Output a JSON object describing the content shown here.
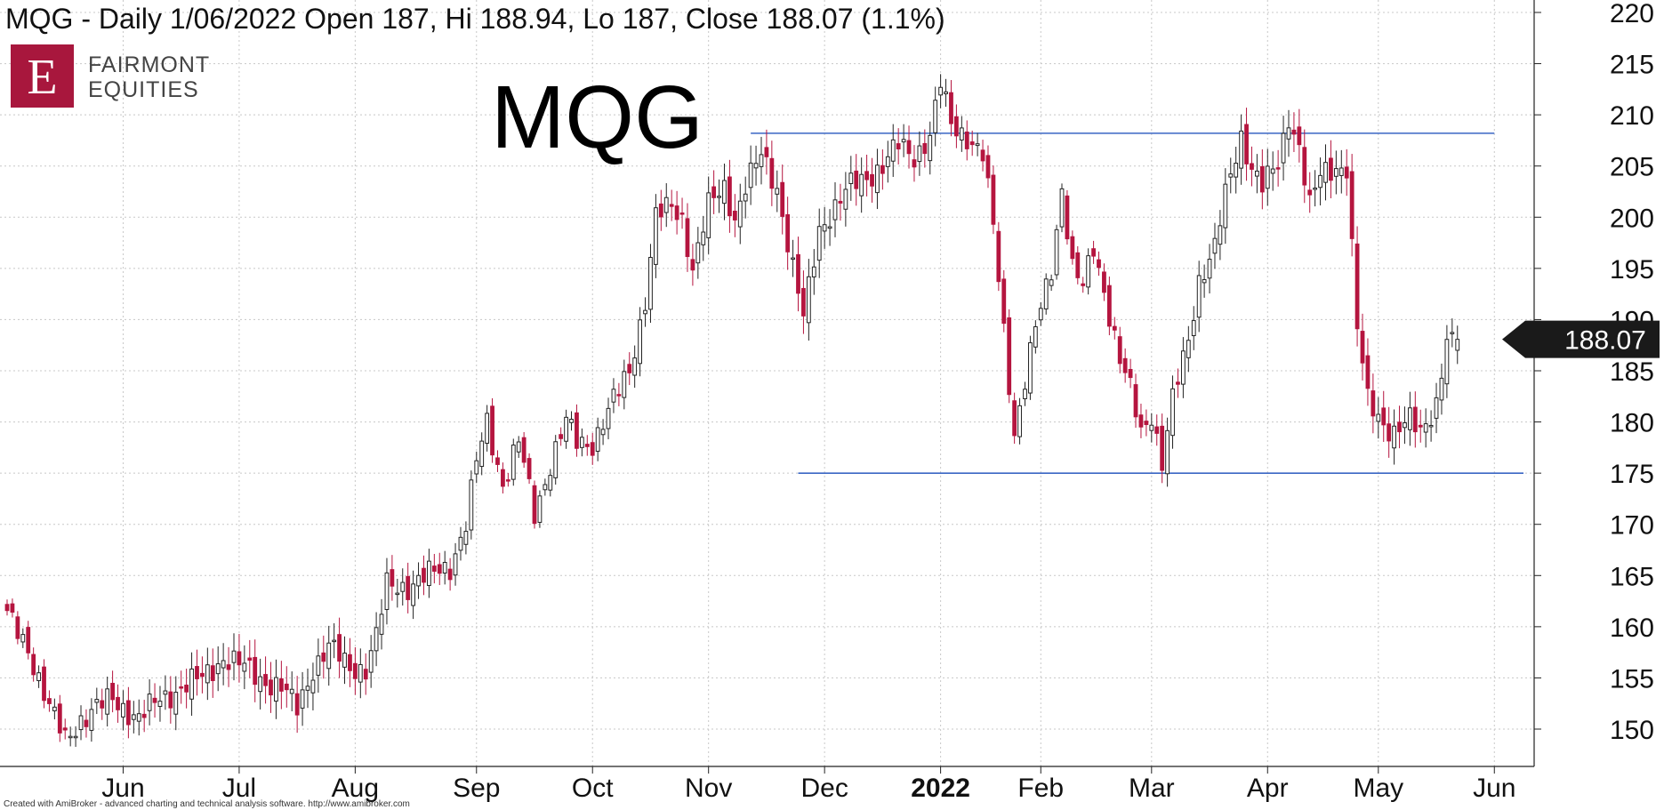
{
  "header": {
    "title": "MQG - Daily 1/06/2022 Open 187, Hi 188.94, Lo 187, Close 188.07 (1.1%)"
  },
  "logo": {
    "letter": "E",
    "line1": "FAIRMONT",
    "line2": "EQUITIES",
    "color": "#a8173d"
  },
  "ticker_label": "MQG",
  "footer_text": "Created with AmiBroker - advanced charting and technical analysis software. http://www.amibroker.com",
  "colors": {
    "up_fill": "#ffffff",
    "down_fill": "#b5153f",
    "candle_outline": "#222222",
    "level_line": "#3a66c4",
    "grid": "#c8c8c8",
    "price_tag_bg": "#1a1a1a"
  },
  "chart_data": {
    "type": "candlestick",
    "ylim": [
      146,
      222
    ],
    "y_ticks": [
      150,
      155,
      160,
      165,
      170,
      175,
      180,
      185,
      190,
      195,
      200,
      205,
      210,
      215,
      220
    ],
    "x_ticks": [
      {
        "label": "Jun",
        "bar": 22,
        "bold": false
      },
      {
        "label": "Jul",
        "bar": 44,
        "bold": false
      },
      {
        "label": "Aug",
        "bar": 66,
        "bold": false
      },
      {
        "label": "Sep",
        "bar": 89,
        "bold": false
      },
      {
        "label": "Oct",
        "bar": 111,
        "bold": false
      },
      {
        "label": "Nov",
        "bar": 133,
        "bold": false
      },
      {
        "label": "Dec",
        "bar": 155,
        "bold": false
      },
      {
        "label": "2022",
        "bar": 177,
        "bold": true
      },
      {
        "label": "Feb",
        "bar": 196,
        "bold": false
      },
      {
        "label": "Mar",
        "bar": 217,
        "bold": false
      },
      {
        "label": "Apr",
        "bar": 239,
        "bold": false
      },
      {
        "label": "May",
        "bar": 260,
        "bold": false
      },
      {
        "label": "Jun",
        "bar": 282,
        "bold": false
      }
    ],
    "levels": [
      {
        "value": 208.2,
        "from_bar": 141,
        "to_bar": 282
      },
      {
        "value": 175.0,
        "from_bar": 150,
        "to_bar": 292
      }
    ],
    "last_price": "188.07",
    "last_price_value": 188.07,
    "anchors": [
      [
        0,
        161
      ],
      [
        4,
        158
      ],
      [
        8,
        152
      ],
      [
        11,
        149
      ],
      [
        14,
        151
      ],
      [
        17,
        152
      ],
      [
        20,
        153
      ],
      [
        25,
        151
      ],
      [
        29,
        153
      ],
      [
        33,
        154
      ],
      [
        37,
        155
      ],
      [
        41,
        157
      ],
      [
        45,
        156
      ],
      [
        48,
        155
      ],
      [
        52,
        154
      ],
      [
        55,
        152
      ],
      [
        58,
        156
      ],
      [
        61,
        158
      ],
      [
        65,
        156
      ],
      [
        68,
        156
      ],
      [
        70,
        159
      ],
      [
        72,
        164
      ],
      [
        76,
        164
      ],
      [
        80,
        165
      ],
      [
        84,
        166
      ],
      [
        87,
        170
      ],
      [
        89,
        176
      ],
      [
        91,
        180
      ],
      [
        94,
        174
      ],
      [
        97,
        178
      ],
      [
        100,
        171
      ],
      [
        103,
        176
      ],
      [
        106,
        180
      ],
      [
        108,
        178
      ],
      [
        111,
        178
      ],
      [
        115,
        182
      ],
      [
        118,
        185
      ],
      [
        121,
        192
      ],
      [
        123,
        200
      ],
      [
        126,
        201
      ],
      [
        128,
        200
      ],
      [
        130,
        195
      ],
      [
        133,
        201
      ],
      [
        136,
        203
      ],
      [
        138,
        200
      ],
      [
        140,
        203
      ],
      [
        143,
        206
      ],
      [
        146,
        203
      ],
      [
        149,
        195
      ],
      [
        151,
        190
      ],
      [
        154,
        199
      ],
      [
        157,
        201
      ],
      [
        160,
        203
      ],
      [
        163,
        204
      ],
      [
        166,
        205
      ],
      [
        169,
        207
      ],
      [
        172,
        206
      ],
      [
        175,
        208
      ],
      [
        177,
        213
      ],
      [
        179,
        209
      ],
      [
        182,
        208
      ],
      [
        185,
        206
      ],
      [
        187,
        199
      ],
      [
        189,
        189
      ],
      [
        191,
        179
      ],
      [
        193,
        184
      ],
      [
        195,
        189
      ],
      [
        198,
        195
      ],
      [
        200,
        203
      ],
      [
        202,
        195
      ],
      [
        204,
        193
      ],
      [
        206,
        197
      ],
      [
        208,
        193
      ],
      [
        211,
        186
      ],
      [
        213,
        183
      ],
      [
        215,
        179
      ],
      [
        217,
        181
      ],
      [
        219,
        176
      ],
      [
        221,
        182
      ],
      [
        224,
        188
      ],
      [
        226,
        194
      ],
      [
        229,
        197
      ],
      [
        231,
        202
      ],
      [
        234,
        208
      ],
      [
        236,
        205
      ],
      [
        238,
        203
      ],
      [
        241,
        205
      ],
      [
        243,
        210
      ],
      [
        245,
        207
      ],
      [
        247,
        201
      ],
      [
        249,
        204
      ],
      [
        252,
        205
      ],
      [
        254,
        205
      ],
      [
        256,
        189
      ],
      [
        258,
        182
      ],
      [
        261,
        180
      ],
      [
        263,
        179
      ],
      [
        266,
        180
      ],
      [
        268,
        179
      ],
      [
        271,
        182
      ],
      [
        273,
        188
      ],
      [
        275,
        187
      ]
    ],
    "note": ""
  }
}
